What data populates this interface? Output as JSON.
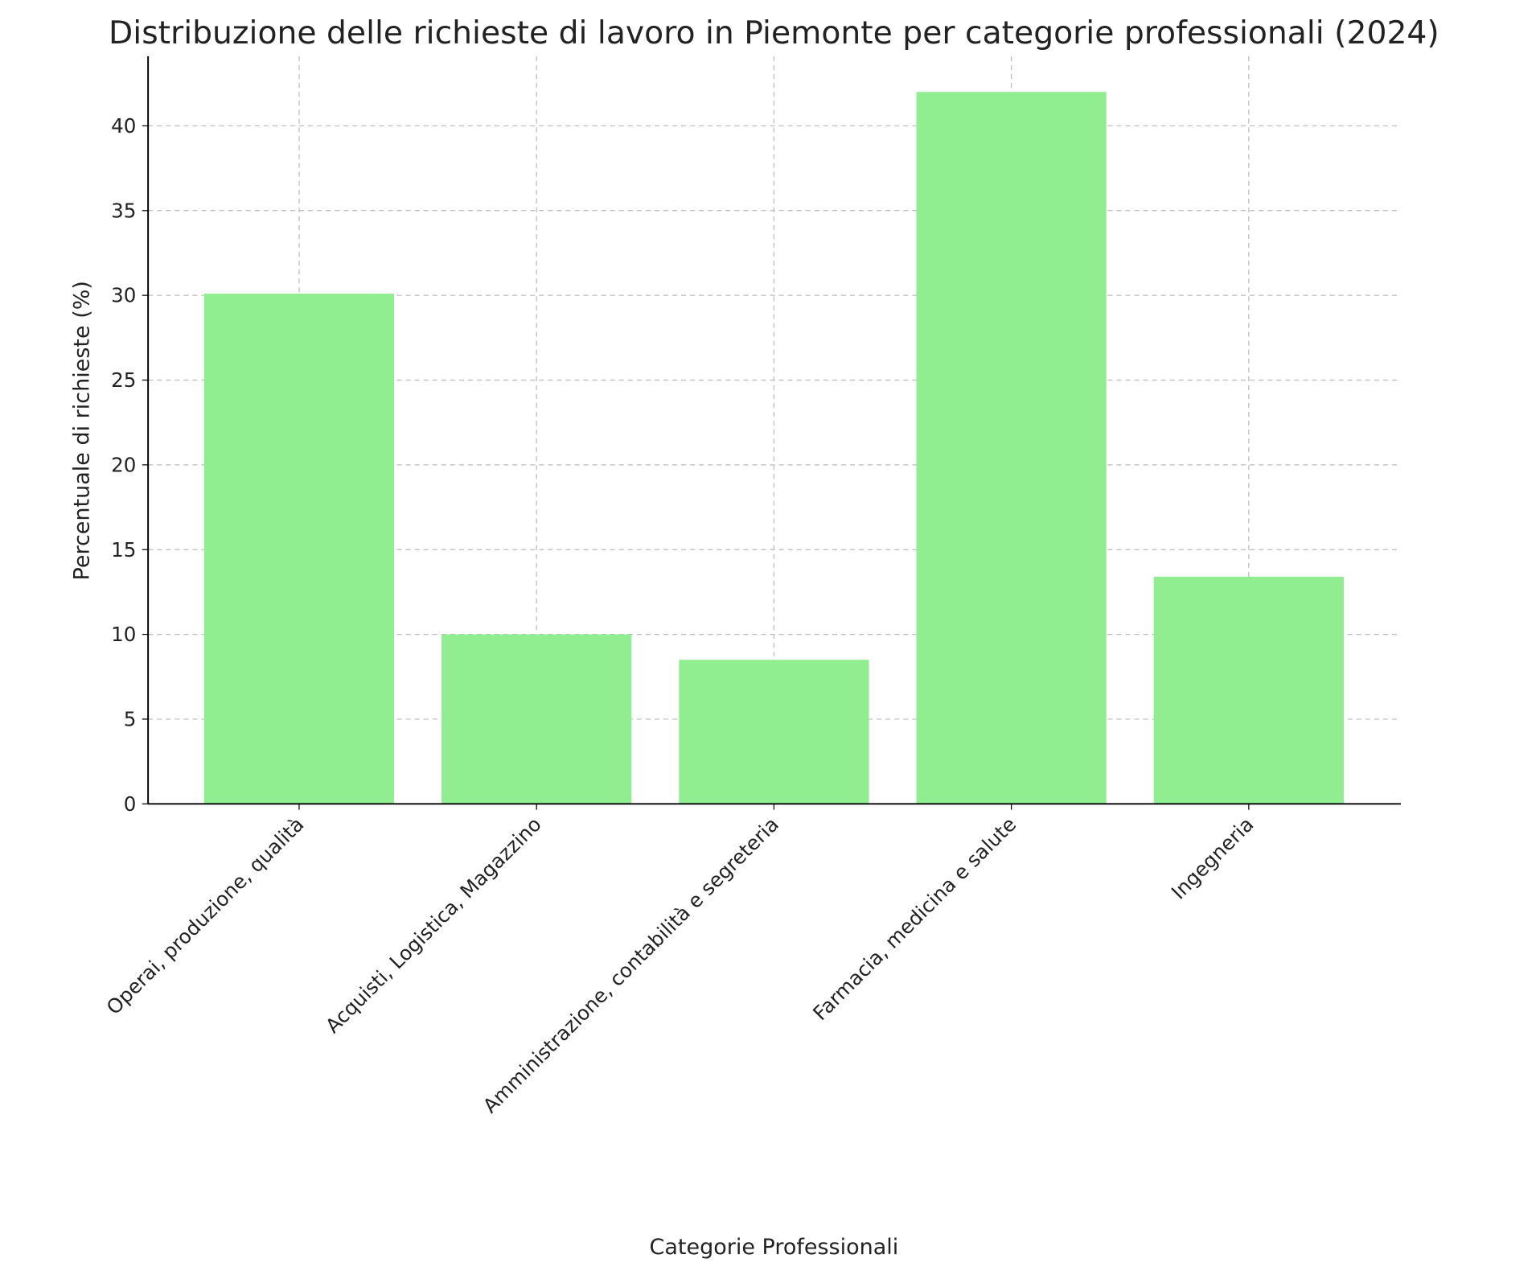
{
  "chart_data": {
    "type": "bar",
    "title": "Distribuzione delle richieste di lavoro in Piemonte per categorie professionali (2024)",
    "x_label": "Categorie Professionali",
    "y_label": "Percentuale di richieste (%)",
    "categories": [
      "Operai, produzione, qualità",
      "Acquisti, Logistica, Magazzino",
      "Amministrazione, contabilità e segreteria",
      "Farmacia, medicina e salute",
      "Ingegneria"
    ],
    "values": [
      30.1,
      10,
      8.5,
      42,
      13.4
    ],
    "color": "#90ee90",
    "ylim": [
      0,
      44.1
    ],
    "yticks": [
      0,
      5,
      10,
      15,
      20,
      25,
      30,
      35,
      40
    ],
    "grid": true
  }
}
